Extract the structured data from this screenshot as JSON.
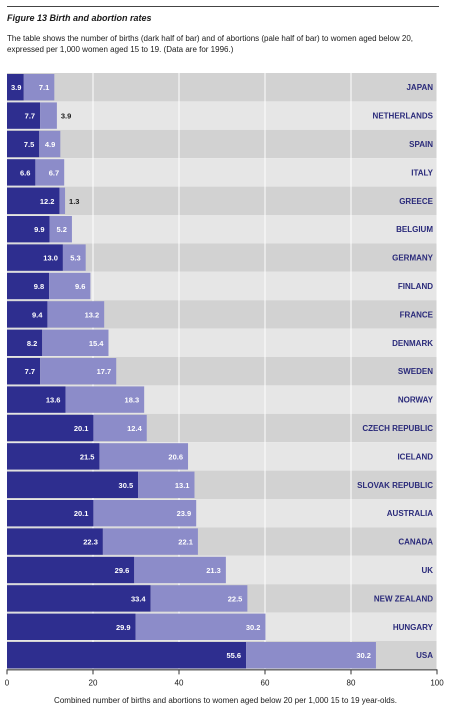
{
  "figure_title": "Figure 13  Birth and abortion rates",
  "description": "The table shows the number of births (dark half of bar) and of abortions (pale half of bar) to women aged below 20, expressed per 1,000 women aged 15 to 19. (Data are for 1996.)",
  "x_axis_caption": "Combined number of births and abortions to women aged below 20 per 1,000 15 to 19 year-olds.",
  "colors": {
    "births": "#2e2e8f",
    "abortions": "#8c8cc9",
    "row_dark": "#d2d2d2",
    "row_light": "#e6e6e6",
    "label": "#2a2a7a"
  },
  "chart_data": {
    "type": "bar",
    "orientation": "horizontal",
    "stacked": true,
    "categories": [
      "JAPAN",
      "NETHERLANDS",
      "SPAIN",
      "ITALY",
      "GREECE",
      "BELGIUM",
      "GERMANY",
      "FINLAND",
      "FRANCE",
      "DENMARK",
      "SWEDEN",
      "NORWAY",
      "CZECH REPUBLIC",
      "ICELAND",
      "SLOVAK REPUBLIC",
      "AUSTRALIA",
      "CANADA",
      "UK",
      "NEW ZEALAND",
      "HUNGARY",
      "USA"
    ],
    "series": [
      {
        "values": [
          3.9,
          7.7,
          7.5,
          6.6,
          12.2,
          9.9,
          13.0,
          9.8,
          9.4,
          8.2,
          7.7,
          13.6,
          20.1,
          21.5,
          30.5,
          20.1,
          22.3,
          29.6,
          33.4,
          29.9,
          55.6
        ]
      },
      {
        "values": [
          7.1,
          3.9,
          4.9,
          6.7,
          1.3,
          5.2,
          5.3,
          9.6,
          13.2,
          15.4,
          17.7,
          18.3,
          12.4,
          20.6,
          13.1,
          23.9,
          22.1,
          21.3,
          22.5,
          30.2,
          30.2
        ]
      }
    ],
    "xlim": [
      0,
      100
    ],
    "xticks": [
      0,
      20,
      40,
      60,
      80,
      100
    ],
    "grid": true,
    "xlabel": "Combined number of births and abortions to women aged below 20 per 1,000 15 to 19 year-olds."
  }
}
